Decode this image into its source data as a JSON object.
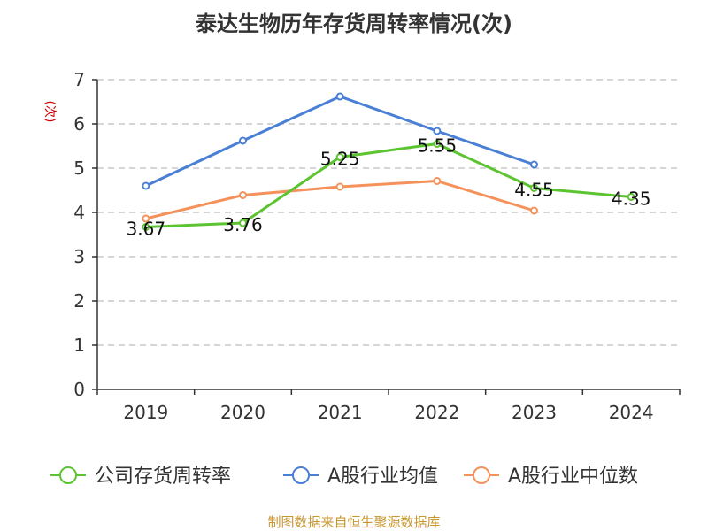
{
  "chart_data": {
    "type": "line",
    "title": "泰达生物历年存货周转率情况(次)",
    "ylabel": "(次)",
    "xlabel": "",
    "categories": [
      "2019",
      "2020",
      "2021",
      "2022",
      "2023",
      "2024"
    ],
    "ylim": [
      0,
      7
    ],
    "yticks": [
      0,
      1,
      2,
      3,
      4,
      5,
      6,
      7
    ],
    "grid": true,
    "legend_position": "bottom",
    "series": [
      {
        "name": "公司存货周转率",
        "color": "#5dc431",
        "values": [
          3.67,
          3.76,
          5.25,
          5.55,
          4.55,
          4.35
        ],
        "labels": [
          "3.67",
          "3.76",
          "5.25",
          "5.55",
          "4.55",
          "4.35"
        ]
      },
      {
        "name": "A股行业均值",
        "color": "#4a7fd6",
        "values": [
          4.6,
          5.62,
          6.62,
          5.84,
          5.08,
          null
        ]
      },
      {
        "name": "A股行业中位数",
        "color": "#f5925b",
        "values": [
          3.86,
          4.39,
          4.58,
          4.71,
          4.04,
          null
        ]
      }
    ]
  },
  "source": "制图数据来自恒生聚源数据库"
}
